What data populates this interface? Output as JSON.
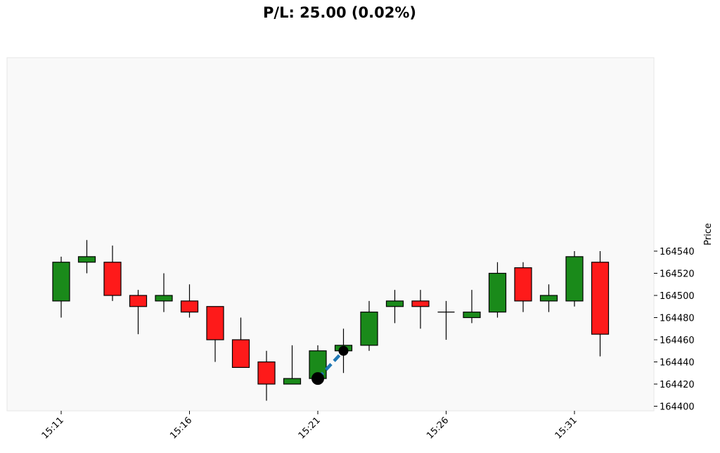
{
  "chart_data": {
    "type": "candlestick",
    "title": "P/L: 25.00 (0.02%)",
    "ylabel": "Price",
    "xlabel": "",
    "ylim": [
      164400,
      164550
    ],
    "y_ticks": [
      164400,
      164420,
      164440,
      164460,
      164480,
      164500,
      164520,
      164540
    ],
    "x_ticks": [
      "15:11",
      "15:16",
      "15:21",
      "15:26",
      "15:31"
    ],
    "colors": {
      "up": "#1a8a1a",
      "down": "#fe1a1a",
      "trade_line": "#1f77b4",
      "marker": "#000000",
      "plot_bg": "#f9f9f9"
    },
    "candles": [
      {
        "time": "15:11",
        "open": 164495,
        "high": 164535,
        "low": 164480,
        "close": 164530
      },
      {
        "time": "15:12",
        "open": 164530,
        "high": 164550,
        "low": 164520,
        "close": 164535
      },
      {
        "time": "15:13",
        "open": 164530,
        "high": 164545,
        "low": 164495,
        "close": 164500
      },
      {
        "time": "15:14",
        "open": 164500,
        "high": 164505,
        "low": 164465,
        "close": 164490
      },
      {
        "time": "15:15",
        "open": 164495,
        "high": 164520,
        "low": 164485,
        "close": 164500
      },
      {
        "time": "15:16",
        "open": 164495,
        "high": 164510,
        "low": 164480,
        "close": 164485
      },
      {
        "time": "15:17",
        "open": 164490,
        "high": 164490,
        "low": 164440,
        "close": 164460
      },
      {
        "time": "15:18",
        "open": 164460,
        "high": 164480,
        "low": 164435,
        "close": 164435
      },
      {
        "time": "15:19",
        "open": 164440,
        "high": 164450,
        "low": 164405,
        "close": 164420
      },
      {
        "time": "15:20",
        "open": 164420,
        "high": 164455,
        "low": 164420,
        "close": 164425
      },
      {
        "time": "15:21",
        "open": 164425,
        "high": 164455,
        "low": 164425,
        "close": 164450
      },
      {
        "time": "15:22",
        "open": 164450,
        "high": 164470,
        "low": 164430,
        "close": 164455
      },
      {
        "time": "15:23",
        "open": 164455,
        "high": 164495,
        "low": 164450,
        "close": 164485
      },
      {
        "time": "15:24",
        "open": 164490,
        "high": 164505,
        "low": 164475,
        "close": 164495
      },
      {
        "time": "15:25",
        "open": 164495,
        "high": 164505,
        "low": 164470,
        "close": 164490
      },
      {
        "time": "15:26",
        "open": 164485,
        "high": 164495,
        "low": 164460,
        "close": 164485
      },
      {
        "time": "15:27",
        "open": 164480,
        "high": 164505,
        "low": 164475,
        "close": 164485
      },
      {
        "time": "15:28",
        "open": 164485,
        "high": 164530,
        "low": 164480,
        "close": 164520
      },
      {
        "time": "15:29",
        "open": 164525,
        "high": 164530,
        "low": 164485,
        "close": 164495
      },
      {
        "time": "15:30",
        "open": 164495,
        "high": 164510,
        "low": 164485,
        "close": 164500
      },
      {
        "time": "15:31",
        "open": 164495,
        "high": 164540,
        "low": 164490,
        "close": 164535
      },
      {
        "time": "15:32",
        "open": 164530,
        "high": 164540,
        "low": 164445,
        "close": 164465
      }
    ],
    "trade": {
      "entry": {
        "time": "15:21",
        "price": 164425
      },
      "exit": {
        "time": "15:22",
        "price": 164450
      }
    }
  }
}
